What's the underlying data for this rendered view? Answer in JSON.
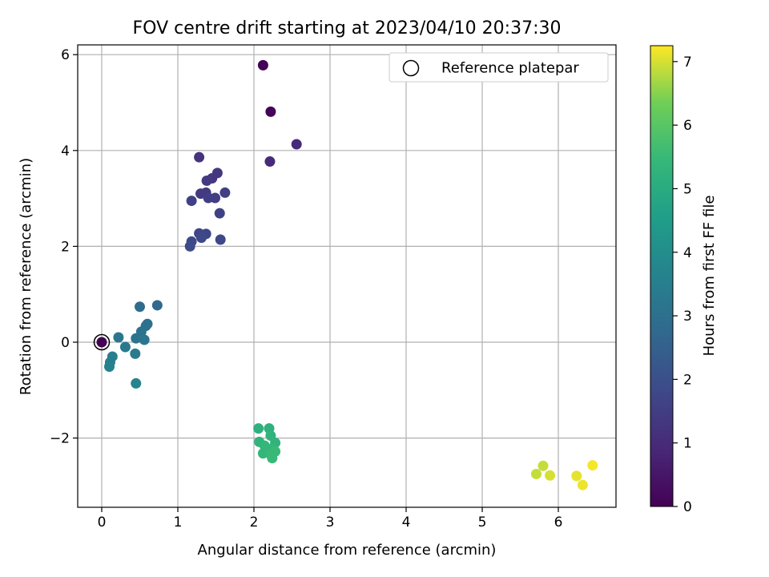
{
  "chart_data": {
    "type": "scatter",
    "title": "FOV centre drift starting at 2023/04/10 20:37:30",
    "xlabel": "Angular distance from reference (arcmin)",
    "ylabel": "Rotation from reference (arcmin)",
    "xlim": [
      -0.33,
      6.77
    ],
    "ylim": [
      -3.45,
      6.2
    ],
    "xticks": [
      "0",
      "1",
      "2",
      "3",
      "4",
      "5",
      "6"
    ],
    "yticks": [
      "−2",
      "0",
      "2",
      "4",
      "6"
    ],
    "grid": true,
    "legend": {
      "placement": "top-right",
      "entries": [
        "Reference platepar"
      ]
    },
    "reference_point": {
      "x": 0,
      "y": 0
    },
    "colorbar": {
      "label": "Hours from first FF file",
      "range": [
        0,
        7.25
      ],
      "ticks": [
        "0",
        "1",
        "2",
        "3",
        "4",
        "5",
        "6",
        "7"
      ],
      "colormap": "viridis"
    },
    "points": [
      {
        "x": 2.12,
        "y": 5.78,
        "c": 0.05
      },
      {
        "x": 2.22,
        "y": 4.81,
        "c": 0.1
      },
      {
        "x": 2.56,
        "y": 4.13,
        "c": 1.0
      },
      {
        "x": 2.21,
        "y": 3.77,
        "c": 1.0
      },
      {
        "x": 1.28,
        "y": 3.86,
        "c": 1.2
      },
      {
        "x": 1.52,
        "y": 3.53,
        "c": 1.3
      },
      {
        "x": 1.45,
        "y": 3.42,
        "c": 1.3
      },
      {
        "x": 1.38,
        "y": 3.37,
        "c": 1.4
      },
      {
        "x": 1.3,
        "y": 3.1,
        "c": 1.4
      },
      {
        "x": 1.37,
        "y": 3.12,
        "c": 1.4
      },
      {
        "x": 1.4,
        "y": 3.01,
        "c": 1.5
      },
      {
        "x": 1.49,
        "y": 3.01,
        "c": 1.5
      },
      {
        "x": 1.62,
        "y": 3.12,
        "c": 1.5
      },
      {
        "x": 1.18,
        "y": 2.95,
        "c": 1.6
      },
      {
        "x": 1.55,
        "y": 2.69,
        "c": 1.6
      },
      {
        "x": 1.28,
        "y": 2.27,
        "c": 1.7
      },
      {
        "x": 1.37,
        "y": 2.26,
        "c": 1.7
      },
      {
        "x": 1.31,
        "y": 2.18,
        "c": 1.8
      },
      {
        "x": 1.18,
        "y": 2.1,
        "c": 1.8
      },
      {
        "x": 1.56,
        "y": 2.14,
        "c": 1.8
      },
      {
        "x": 1.16,
        "y": 2.0,
        "c": 1.9
      },
      {
        "x": 0.73,
        "y": 0.77,
        "c": 2.8
      },
      {
        "x": 0.5,
        "y": 0.74,
        "c": 2.9
      },
      {
        "x": 0.6,
        "y": 0.38,
        "c": 3.0
      },
      {
        "x": 0.58,
        "y": 0.34,
        "c": 3.0
      },
      {
        "x": 0.52,
        "y": 0.22,
        "c": 3.1
      },
      {
        "x": 0.45,
        "y": 0.08,
        "c": 3.1
      },
      {
        "x": 0.56,
        "y": 0.05,
        "c": 3.2
      },
      {
        "x": 0.22,
        "y": 0.1,
        "c": 3.2
      },
      {
        "x": 0.31,
        "y": -0.1,
        "c": 3.3
      },
      {
        "x": 0.44,
        "y": -0.24,
        "c": 3.4
      },
      {
        "x": 0.14,
        "y": -0.3,
        "c": 3.5
      },
      {
        "x": 0.11,
        "y": -0.42,
        "c": 3.5
      },
      {
        "x": 0.1,
        "y": -0.51,
        "c": 3.6
      },
      {
        "x": 0.45,
        "y": -0.86,
        "c": 3.7
      },
      {
        "x": 2.06,
        "y": -1.8,
        "c": 5.2
      },
      {
        "x": 2.2,
        "y": -1.8,
        "c": 5.2
      },
      {
        "x": 2.22,
        "y": -1.95,
        "c": 5.3
      },
      {
        "x": 2.07,
        "y": -2.08,
        "c": 5.3
      },
      {
        "x": 2.28,
        "y": -2.1,
        "c": 5.3
      },
      {
        "x": 2.14,
        "y": -2.16,
        "c": 5.4
      },
      {
        "x": 2.24,
        "y": -2.22,
        "c": 5.4
      },
      {
        "x": 2.18,
        "y": -2.27,
        "c": 5.4
      },
      {
        "x": 2.12,
        "y": -2.32,
        "c": 5.4
      },
      {
        "x": 2.28,
        "y": -2.28,
        "c": 5.5
      },
      {
        "x": 2.22,
        "y": -2.34,
        "c": 5.5
      },
      {
        "x": 2.24,
        "y": -2.42,
        "c": 5.5
      },
      {
        "x": 5.8,
        "y": -2.58,
        "c": 6.9
      },
      {
        "x": 5.71,
        "y": -2.75,
        "c": 6.9
      },
      {
        "x": 5.89,
        "y": -2.78,
        "c": 7.0
      },
      {
        "x": 6.45,
        "y": -2.57,
        "c": 7.2
      },
      {
        "x": 6.24,
        "y": -2.79,
        "c": 7.1
      },
      {
        "x": 6.32,
        "y": -2.98,
        "c": 7.15
      },
      {
        "x": 0.0,
        "y": 0.0,
        "c": 0.0
      }
    ]
  }
}
